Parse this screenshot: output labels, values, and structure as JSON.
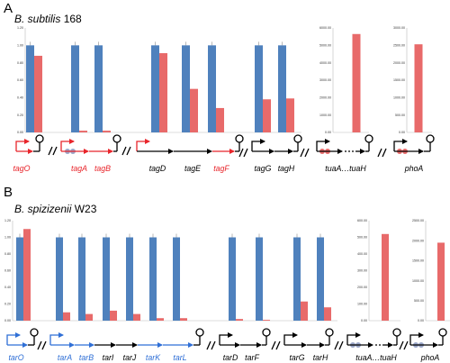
{
  "panel_a": {
    "label": "A",
    "organism_italic": "B. subtilis",
    "strain": "168",
    "genes": [
      {
        "name": "tagO",
        "color": "#e8252b"
      },
      {
        "name": "tagA",
        "color": "#e8252b"
      },
      {
        "name": "tagB",
        "color": "#e8252b"
      },
      {
        "name": "tagD",
        "color": "#000000"
      },
      {
        "name": "tagE",
        "color": "#000000"
      },
      {
        "name": "tagF",
        "color": "#e8252b"
      },
      {
        "name": "tagG",
        "color": "#000000"
      },
      {
        "name": "tagH",
        "color": "#000000"
      },
      {
        "name": "tuaA…tuaH",
        "color": "#000000"
      },
      {
        "name": "phoA",
        "color": "#000000"
      }
    ]
  },
  "panel_b": {
    "label": "B",
    "organism_italic": "B. spizizenii",
    "strain": "W23",
    "genes": [
      {
        "name": "tarO",
        "color": "#2f6fd6"
      },
      {
        "name": "tarA",
        "color": "#2f6fd6"
      },
      {
        "name": "tarB",
        "color": "#2f6fd6"
      },
      {
        "name": "tarI",
        "color": "#000000"
      },
      {
        "name": "tarJ",
        "color": "#000000"
      },
      {
        "name": "tarK",
        "color": "#2f6fd6"
      },
      {
        "name": "tarL",
        "color": "#2f6fd6"
      },
      {
        "name": "tarD",
        "color": "#000000"
      },
      {
        "name": "tarF",
        "color": "#000000"
      },
      {
        "name": "tarG",
        "color": "#000000"
      },
      {
        "name": "tarH",
        "color": "#000000"
      },
      {
        "name": "tuaA…tuaH",
        "color": "#000000"
      },
      {
        "name": "phoA",
        "color": "#000000"
      }
    ]
  },
  "chart_data": [
    {
      "type": "bar",
      "panel": "A",
      "categories": [
        "tagO",
        "tagA",
        "tagB",
        "tagD",
        "tagE",
        "tagF",
        "tagG",
        "tagH"
      ],
      "series": [
        {
          "color": "#4f81bd",
          "values": [
            1.0,
            1.0,
            1.0,
            1.0,
            1.0,
            1.0,
            1.0,
            1.0
          ]
        },
        {
          "color": "#e86a6a",
          "values": [
            0.88,
            0.02,
            0.02,
            0.91,
            0.5,
            0.28,
            0.38,
            0.39
          ]
        }
      ],
      "ylim": [
        0,
        1.2
      ],
      "yticks": [
        "0.00",
        "0.20",
        "0.40",
        "0.60",
        "0.80",
        "1.00",
        "1.20"
      ]
    },
    {
      "type": "bar",
      "panel": "A",
      "categories": [
        "tuaA…tuaH"
      ],
      "series": [
        {
          "color": "#e86a6a",
          "values": [
            5650
          ]
        }
      ],
      "ylim": [
        0,
        6000
      ],
      "yticks": [
        "0.00",
        "1000.00",
        "2000.00",
        "3000.00",
        "4000.00",
        "5000.00",
        "6000.00"
      ]
    },
    {
      "type": "bar",
      "panel": "A",
      "categories": [
        "phoA"
      ],
      "series": [
        {
          "color": "#e86a6a",
          "values": [
            2530
          ]
        }
      ],
      "ylim": [
        0,
        3000
      ],
      "yticks": [
        "0.00",
        "500.00",
        "1000.00",
        "1500.00",
        "2000.00",
        "2500.00",
        "3000.00"
      ]
    },
    {
      "type": "bar",
      "panel": "B",
      "categories": [
        "tarO",
        "tarA",
        "tarB",
        "tarI",
        "tarJ",
        "tarK",
        "tarL",
        "tarD",
        "tarF",
        "tarG",
        "tarH"
      ],
      "series": [
        {
          "color": "#4f81bd",
          "values": [
            1.0,
            1.0,
            1.0,
            1.0,
            1.0,
            1.0,
            1.0,
            1.0,
            1.0,
            1.0,
            1.0
          ]
        },
        {
          "color": "#e86a6a",
          "values": [
            1.1,
            0.1,
            0.08,
            0.12,
            0.08,
            0.03,
            0.03,
            0.02,
            0.01,
            0.23,
            0.16
          ]
        }
      ],
      "ylim": [
        0,
        1.2
      ],
      "yticks": [
        "0.00",
        "0.20",
        "0.40",
        "0.60",
        "0.80",
        "1.00",
        "1.20"
      ]
    },
    {
      "type": "bar",
      "panel": "B",
      "categories": [
        "tuaA…tuaH"
      ],
      "series": [
        {
          "color": "#e86a6a",
          "values": [
            520
          ]
        }
      ],
      "ylim": [
        0,
        600
      ],
      "yticks": [
        "0.00",
        "100.00",
        "200.00",
        "300.00",
        "400.00",
        "500.00",
        "600.00"
      ]
    },
    {
      "type": "bar",
      "panel": "B",
      "categories": [
        "phoA"
      ],
      "series": [
        {
          "color": "#e86a6a",
          "values": [
            1950
          ]
        }
      ],
      "ylim": [
        0,
        2500
      ],
      "yticks": [
        "0.00",
        "500.00",
        "1000.00",
        "1500.00",
        "2000.00",
        "2500.00"
      ]
    }
  ]
}
